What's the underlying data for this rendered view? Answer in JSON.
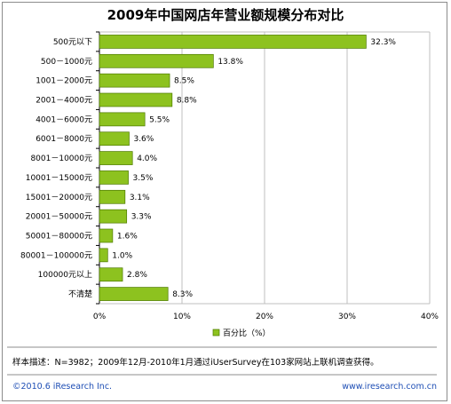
{
  "colors": {
    "bar": "#8dc21f",
    "bar_stroke": "#4d7a00",
    "footer_link": "#1f4fb5"
  },
  "chart_data": {
    "type": "bar",
    "orientation": "horizontal",
    "title": "2009年中国网店年营业额规模分布对比",
    "categories": [
      "500元以下",
      "500－1000元",
      "1001－2000元",
      "2001－4000元",
      "4001－6000元",
      "6001－8000元",
      "8001－10000元",
      "10001－15000元",
      "15001－20000元",
      "20001－50000元",
      "50001－80000元",
      "80001－100000元",
      "100000元以上",
      "不清楚"
    ],
    "series": [
      {
        "name": "百分比（%）",
        "values": [
          32.3,
          13.8,
          8.5,
          8.8,
          5.5,
          3.6,
          4.0,
          3.5,
          3.1,
          3.3,
          1.6,
          1.0,
          2.8,
          8.3
        ]
      }
    ],
    "data_labels": [
      "32.3%",
      "13.8%",
      "8.5%",
      "8.8%",
      "5.5%",
      "3.6%",
      "4.0%",
      "3.5%",
      "3.1%",
      "3.3%",
      "1.6%",
      "1.0%",
      "2.8%",
      "8.3%"
    ],
    "x_ticks": [
      "0%",
      "10%",
      "20%",
      "30%",
      "40%"
    ],
    "xlim": [
      0,
      40
    ],
    "grid": true,
    "legend": "bottom"
  },
  "note": "样本描述：N=3982；2009年12月-2010年1月通过iUserSurvey在103家网站上联机调查获得。",
  "footer": {
    "copyright": "©2010.6 iResearch Inc.",
    "website": "www.iresearch.com.cn"
  }
}
